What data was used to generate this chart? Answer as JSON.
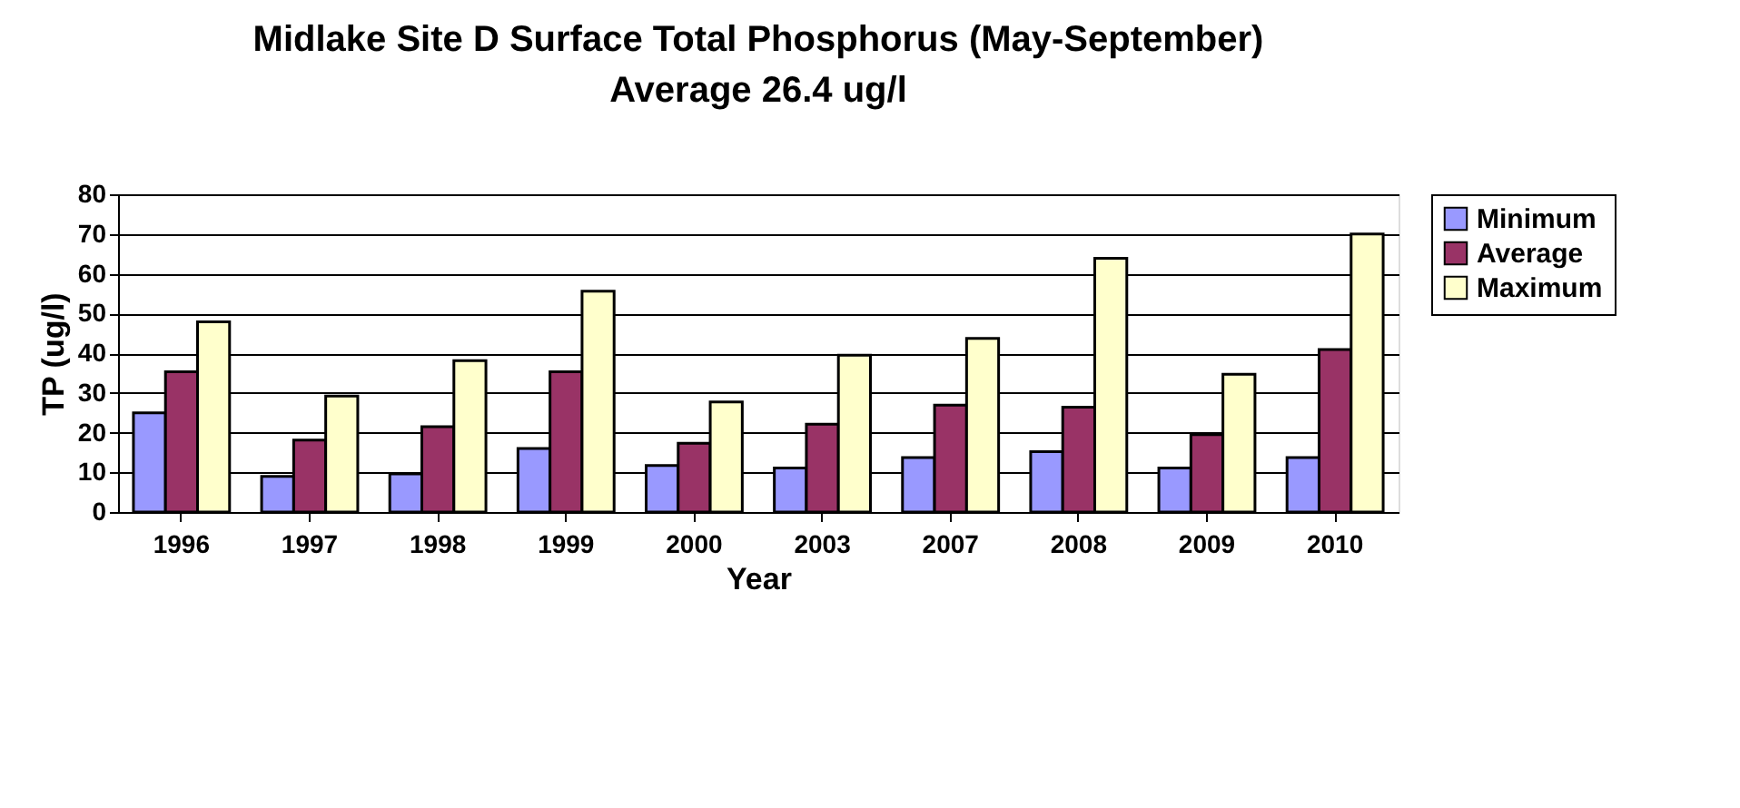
{
  "chart_data": {
    "type": "bar",
    "title": "Midlake Site D Surface Total Phosphorus (May-September)",
    "subtitle": "Average 26.4 ug/l",
    "xlabel": "Year",
    "ylabel": "TP (ug/l)",
    "categories": [
      "1996",
      "1997",
      "1998",
      "1999",
      "2000",
      "2003",
      "2007",
      "2008",
      "2009",
      "2010"
    ],
    "series": [
      {
        "name": "Minimum",
        "color": "#9999ff",
        "values": [
          25,
          9,
          9.6,
          16,
          11.7,
          11.1,
          13.7,
          15.2,
          11.1,
          13.7
        ]
      },
      {
        "name": "Average",
        "color": "#993366",
        "values": [
          35.3,
          18.1,
          21.5,
          35.3,
          17.3,
          22.1,
          26.9,
          26.4,
          19.5,
          40.9
        ]
      },
      {
        "name": "Maximum",
        "color": "#ffffcc",
        "values": [
          47.9,
          29.2,
          38.1,
          55.6,
          27.7,
          39.5,
          43.7,
          63.9,
          34.7,
          70
        ]
      }
    ],
    "ylim": [
      0,
      80
    ],
    "yticks": [
      0,
      10,
      20,
      30,
      40,
      50,
      60,
      70,
      80
    ],
    "grid": "y",
    "legend": "right"
  }
}
